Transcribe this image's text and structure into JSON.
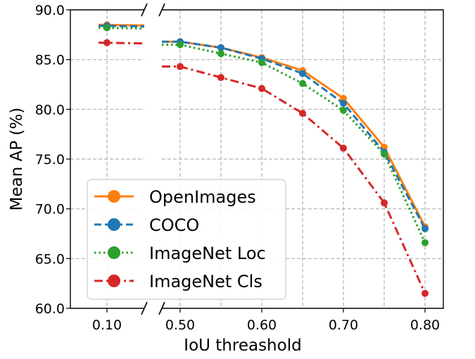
{
  "chart_data": {
    "type": "line",
    "xlabel": "IoU threashold",
    "ylabel": "Mean AP (%)",
    "ylim": [
      60.0,
      90.0
    ],
    "y_ticks": [
      "60.0",
      "65.0",
      "70.0",
      "75.0",
      "80.0",
      "85.0",
      "90.0"
    ],
    "broken_x_axis": true,
    "x_ticks_left": [
      "0.10"
    ],
    "x_ticks_right": [
      "0.50",
      "0.60",
      "0.70",
      "0.80"
    ],
    "grid": true,
    "legend_position": "lower-left",
    "series": [
      {
        "name": "OpenImages",
        "color": "#ff7f0e",
        "style": "solid",
        "x": [
          0.1,
          0.5,
          0.55,
          0.6,
          0.65,
          0.7,
          0.75,
          0.8
        ],
        "values": [
          88.5,
          86.8,
          86.2,
          85.2,
          83.9,
          81.1,
          76.2,
          68.2
        ]
      },
      {
        "name": "COCO",
        "color": "#1f77b4",
        "style": "dashed",
        "x": [
          0.1,
          0.5,
          0.55,
          0.6,
          0.65,
          0.7,
          0.75,
          0.8
        ],
        "values": [
          88.4,
          86.8,
          86.2,
          85.1,
          83.6,
          80.6,
          75.7,
          68.0
        ]
      },
      {
        "name": "ImageNet Loc",
        "color": "#2ca02c",
        "style": "dotted",
        "x": [
          0.1,
          0.5,
          0.55,
          0.6,
          0.65,
          0.7,
          0.75,
          0.8
        ],
        "values": [
          88.2,
          86.5,
          85.6,
          84.7,
          82.6,
          79.9,
          75.5,
          66.6
        ]
      },
      {
        "name": "ImageNet Cls",
        "color": "#d62728",
        "style": "dashdot",
        "x": [
          0.1,
          0.5,
          0.55,
          0.6,
          0.65,
          0.7,
          0.75,
          0.8
        ],
        "values": [
          86.7,
          84.3,
          83.2,
          82.1,
          79.6,
          76.1,
          70.6,
          61.5
        ]
      }
    ]
  }
}
